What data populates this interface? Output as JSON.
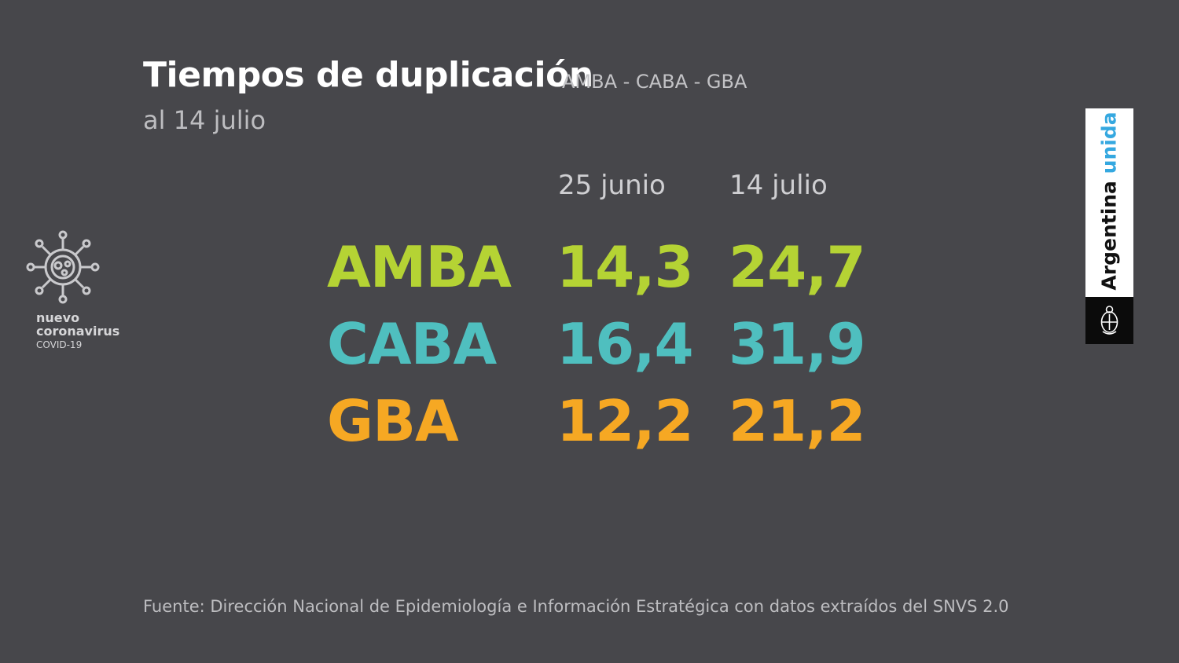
{
  "header": {
    "title": "Tiempos de duplicación",
    "subtitle": "AMBA - CABA - GBA",
    "date": "al 14 julio"
  },
  "columns": [
    "25 junio",
    "14 julio"
  ],
  "rows": [
    {
      "label": "AMBA",
      "values": [
        "14,3",
        "24,7"
      ],
      "color": "#b5d334"
    },
    {
      "label": "CABA",
      "values": [
        "16,4",
        "31,9"
      ],
      "color": "#4fbfbf"
    },
    {
      "label": "GBA",
      "values": [
        "12,2",
        "21,2"
      ],
      "color": "#f6a823"
    }
  ],
  "logo": {
    "line1": "nuevo",
    "line2": "coronavirus",
    "line3": "COVID-19",
    "icon": "virus-icon"
  },
  "badge": {
    "word1": "Argentina",
    "word2": "unida",
    "emblem": "coat-of-arms-icon",
    "accent": "#35a8e0"
  },
  "footer": {
    "source": "Fuente: Dirección Nacional de Epidemiología e Información Estratégica con datos extraídos del SNVS 2.0"
  }
}
